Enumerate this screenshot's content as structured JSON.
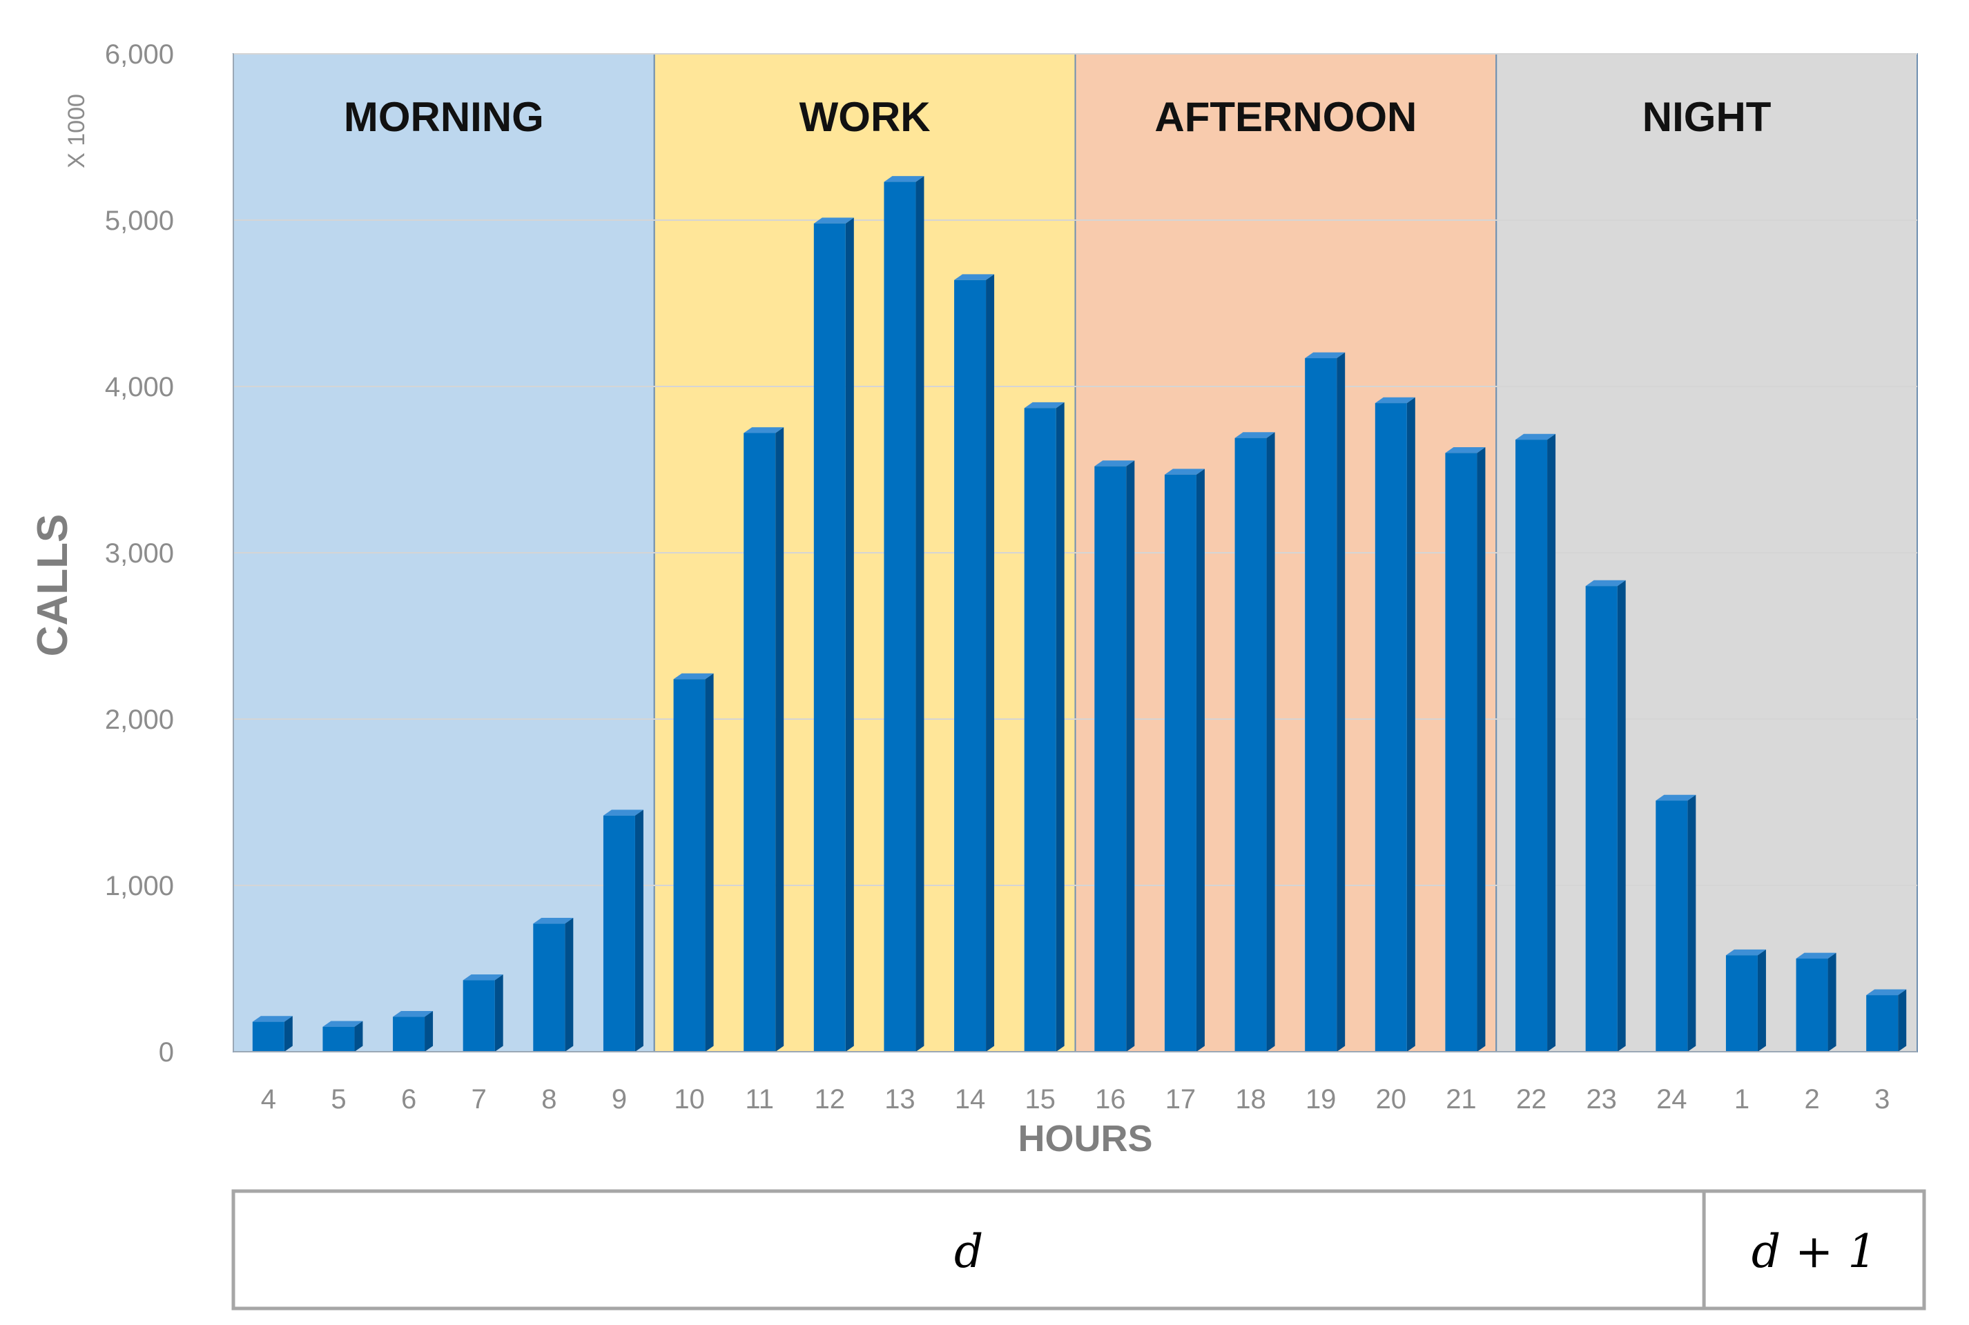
{
  "chart_data": {
    "type": "bar",
    "categories": [
      "4",
      "5",
      "6",
      "7",
      "8",
      "9",
      "10",
      "11",
      "12",
      "13",
      "14",
      "15",
      "16",
      "17",
      "18",
      "19",
      "20",
      "21",
      "22",
      "23",
      "24",
      "1",
      "2",
      "3"
    ],
    "values": [
      180,
      150,
      210,
      430,
      770,
      1420,
      2240,
      3720,
      4980,
      5230,
      4640,
      3870,
      3520,
      3470,
      3690,
      4170,
      3900,
      3600,
      3680,
      2800,
      1510,
      580,
      560,
      340
    ],
    "bar_color": "#0070C0",
    "ylabel": "CALLS",
    "y_unit": "X 1000",
    "xlabel": "HOURS",
    "ylim": [
      0,
      6000
    ],
    "yticks": [
      "0",
      "1,000",
      "2,000",
      "3,000",
      "4,000",
      "5,000",
      "6,000"
    ],
    "grid": true,
    "periods": [
      {
        "label": "MORNING",
        "color": "#BDD7EE",
        "from": "4",
        "to": "9"
      },
      {
        "label": "WORK",
        "color": "#FFE699",
        "from": "10",
        "to": "15"
      },
      {
        "label": "AFTERNOON",
        "color": "#F8CBAD",
        "from": "16",
        "to": "21"
      },
      {
        "label": "NIGHT",
        "color": "#D9D9D9",
        "from": "22",
        "to": "3"
      }
    ],
    "days": [
      {
        "label": "d",
        "from": "4",
        "to": "24"
      },
      {
        "label": "d + 1",
        "from": "1",
        "to": "3"
      }
    ]
  }
}
